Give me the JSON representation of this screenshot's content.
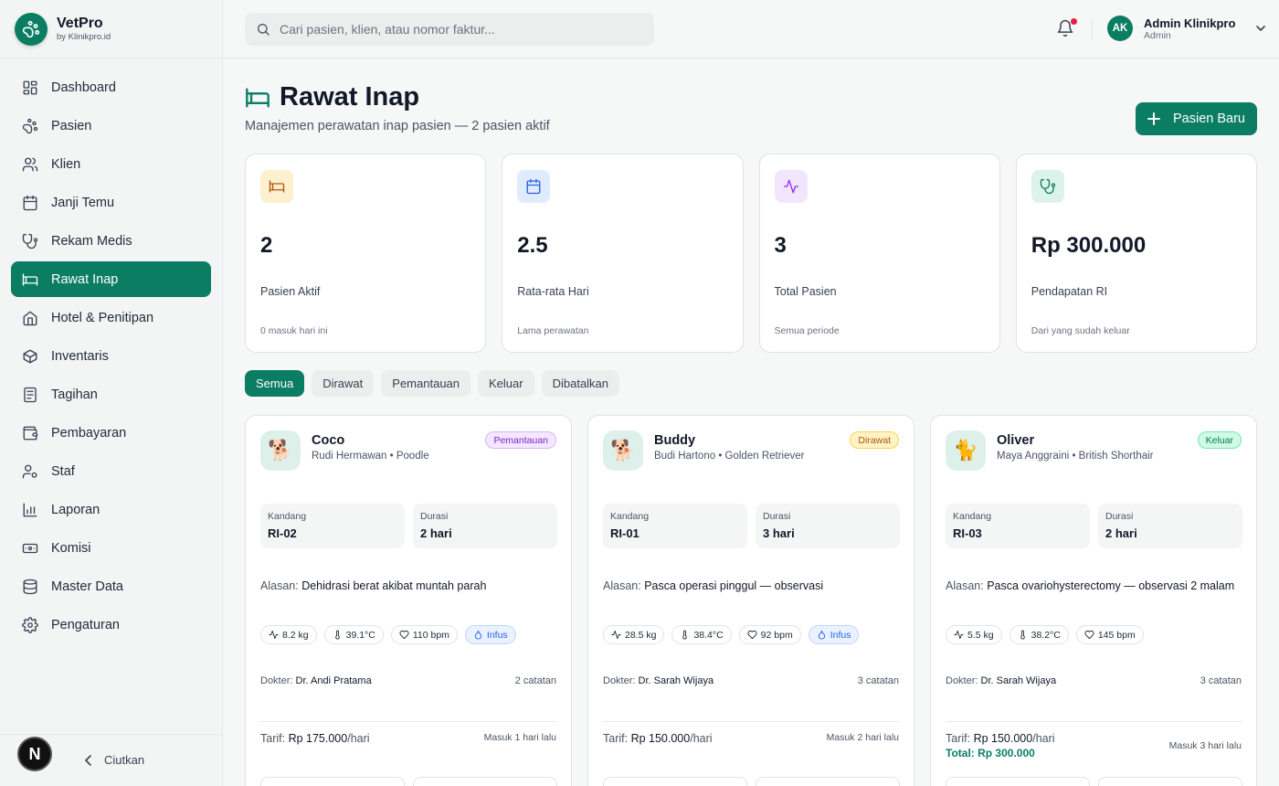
{
  "brand": {
    "name": "VetPro",
    "sub": "by Klinikpro.id"
  },
  "sidebar": {
    "items": [
      {
        "label": "Dashboard",
        "icon": "dashboard-icon"
      },
      {
        "label": "Pasien",
        "icon": "paw-icon"
      },
      {
        "label": "Klien",
        "icon": "users-icon"
      },
      {
        "label": "Janji Temu",
        "icon": "calendar-icon"
      },
      {
        "label": "Rekam Medis",
        "icon": "stethoscope-icon"
      },
      {
        "label": "Rawat Inap",
        "icon": "bed-icon",
        "active": true
      },
      {
        "label": "Hotel & Penitipan",
        "icon": "home-icon"
      },
      {
        "label": "Inventaris",
        "icon": "box-icon"
      },
      {
        "label": "Tagihan",
        "icon": "receipt-icon"
      },
      {
        "label": "Pembayaran",
        "icon": "wallet-icon"
      },
      {
        "label": "Staf",
        "icon": "user-cog-icon"
      },
      {
        "label": "Laporan",
        "icon": "bar-chart-icon"
      },
      {
        "label": "Komisi",
        "icon": "banknote-icon"
      },
      {
        "label": "Master Data",
        "icon": "database-icon"
      },
      {
        "label": "Pengaturan",
        "icon": "gear-icon"
      }
    ],
    "footer_avatar": "N",
    "collapse_label": "Ciutkan"
  },
  "topbar": {
    "search_placeholder": "Cari pasien, klien, atau nomor faktur...",
    "user_initials": "AK",
    "user_name": "Admin Klinikpro",
    "user_role": "Admin"
  },
  "page": {
    "title": "Rawat Inap",
    "subtitle": "Manajemen perawatan inap pasien — 2 pasien aktif",
    "new_button": "Pasien Baru"
  },
  "stats": [
    {
      "value": "2",
      "label": "Pasien Aktif",
      "note": "0 masuk hari ini",
      "icon": "bed-icon",
      "color": "#b45309",
      "bg": "#fdf0cf"
    },
    {
      "value": "2.5",
      "label": "Rata-rata Hari",
      "note": "Lama perawatan",
      "icon": "calendar-icon",
      "color": "#2563eb",
      "bg": "#e0ebfd"
    },
    {
      "value": "3",
      "label": "Total Pasien",
      "note": "Semua periode",
      "icon": "activity-icon",
      "color": "#9333ea",
      "bg": "#f2e6fd"
    },
    {
      "value": "Rp 300.000",
      "label": "Pendapatan RI",
      "note": "Dari yang sudah keluar",
      "icon": "stethoscope-icon",
      "color": "#0b7d63",
      "bg": "#dcf3ea"
    }
  ],
  "tabs": [
    "Semua",
    "Dirawat",
    "Pemantauan",
    "Keluar",
    "Dibatalkan"
  ],
  "labels": {
    "kandang": "Kandang",
    "durasi": "Durasi",
    "alasan": "Alasan:",
    "dokter": "Dokter:",
    "tarif": "Tarif:",
    "per_hari": "/hari"
  },
  "patients": [
    {
      "name": "Coco",
      "owner": "Rudi Hermawan • Poodle",
      "status": "Pemantauan",
      "status_color": "#7e22ce",
      "status_bg": "#f3e8ff",
      "status_border": "#d8b4fe",
      "avatar": "🐕",
      "kandang": "RI-02",
      "durasi": "2 hari",
      "alasan": "Dehidrasi berat akibat muntah parah",
      "weight": "8.2 kg",
      "temp": "39.1°C",
      "bpm": "110 bpm",
      "infus": "Infus",
      "dokter": "Dr. Andi Pratama",
      "catatan": "2 catatan",
      "tarif": "Rp 175.000",
      "total": "",
      "masuk": "Masuk 1 hari lalu"
    },
    {
      "name": "Buddy",
      "owner": "Budi Hartono • Golden Retriever",
      "status": "Dirawat",
      "status_color": "#b45309",
      "status_bg": "#fef3c7",
      "status_border": "#fcd34d",
      "avatar": "🐕",
      "kandang": "RI-01",
      "durasi": "3 hari",
      "alasan": "Pasca operasi pinggul — observasi",
      "weight": "28.5 kg",
      "temp": "38.4°C",
      "bpm": "92 bpm",
      "infus": "Infus",
      "dokter": "Dr. Sarah Wijaya",
      "catatan": "3 catatan",
      "tarif": "Rp 150.000",
      "total": "",
      "masuk": "Masuk 2 hari lalu"
    },
    {
      "name": "Oliver",
      "owner": "Maya Anggraini • British Shorthair",
      "status": "Keluar",
      "status_color": "#047857",
      "status_bg": "#d1fae5",
      "status_border": "#6ee7b7",
      "avatar": "🐈",
      "kandang": "RI-03",
      "durasi": "2 hari",
      "alasan": "Pasca ovariohysterectomy — observasi 2 malam",
      "weight": "5.5 kg",
      "temp": "38.2°C",
      "bpm": "145 bpm",
      "infus": "",
      "dokter": "Dr. Sarah Wijaya",
      "catatan": "3 catatan",
      "tarif": "Rp 150.000",
      "total": "Total: Rp 300.000",
      "masuk": "Masuk 3 hari lalu"
    }
  ]
}
